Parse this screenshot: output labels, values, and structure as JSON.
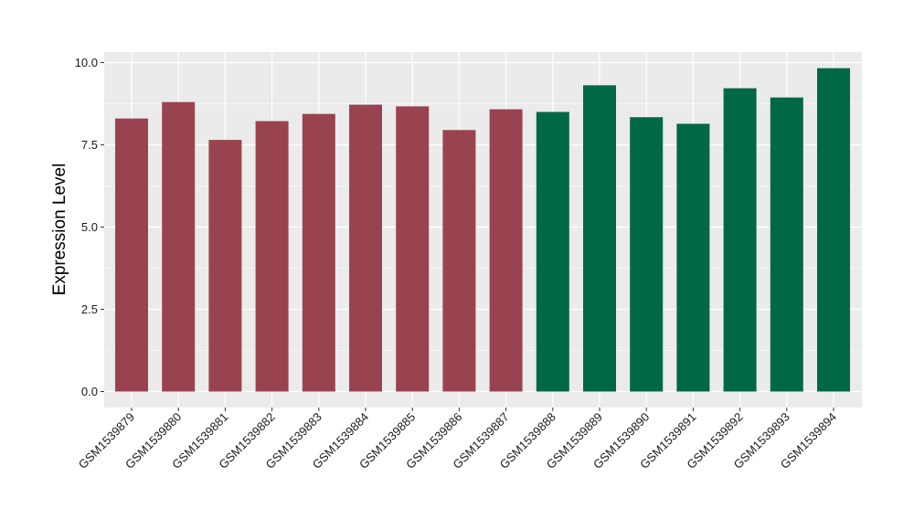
{
  "chart_data": {
    "type": "bar",
    "ylabel": "Expression Level",
    "xlabel": "",
    "title": "",
    "ylim": [
      0,
      10.45
    ],
    "yticks": [
      0.0,
      2.5,
      5.0,
      7.5,
      10.0
    ],
    "ytick_labels": [
      "0.0",
      "2.5",
      "5.0",
      "7.5",
      "10.0"
    ],
    "grid": true,
    "categories": [
      "GSM1539879",
      "GSM1539880",
      "GSM1539881",
      "GSM1539882",
      "GSM1539883",
      "GSM1539884",
      "GSM1539885",
      "GSM1539886",
      "GSM1539887",
      "GSM1539888",
      "GSM1539889",
      "GSM1539890",
      "GSM1539891",
      "GSM1539892",
      "GSM1539893",
      "GSM1539894"
    ],
    "values": [
      8.3,
      8.8,
      7.65,
      8.22,
      8.44,
      8.72,
      8.67,
      7.95,
      8.58,
      8.5,
      9.31,
      8.34,
      8.14,
      9.22,
      8.94,
      9.83
    ],
    "bar_colors": [
      "#9a4350",
      "#9a4350",
      "#9a4350",
      "#9a4350",
      "#9a4350",
      "#9a4350",
      "#9a4350",
      "#9a4350",
      "#9a4350",
      "#006846",
      "#006846",
      "#006846",
      "#006846",
      "#006846",
      "#006846",
      "#006846"
    ],
    "panel_background": "#ebebeb",
    "grid_color": "#ffffff"
  }
}
